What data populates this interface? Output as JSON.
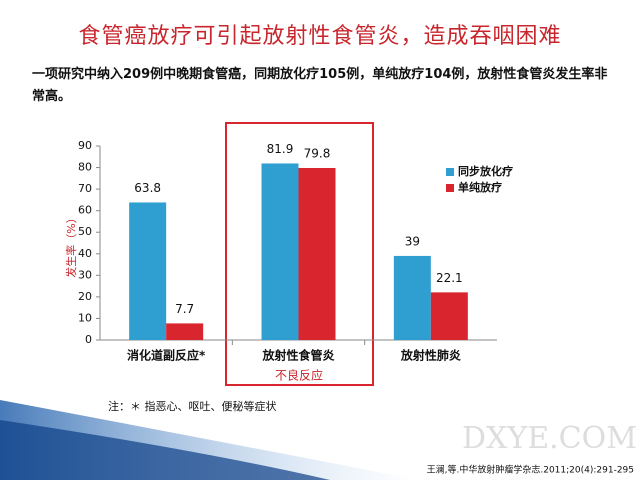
{
  "chart_data": {
    "type": "bar",
    "title": "食管癌放疗可引起放射性食管炎，造成吞咽困难",
    "subtitle": "一项研究中纳入209例中晚期食管癌，同期放化疗105例，单纯放疗104例，放射性食管炎发生率非常高。",
    "categories": [
      "消化道副反应*",
      "放射性食管炎",
      "放射性肺炎"
    ],
    "series": [
      {
        "name": "同步放化疗",
        "color": "#2e9fd0",
        "values": [
          63.8,
          81.9,
          39
        ]
      },
      {
        "name": "单纯放疗",
        "color": "#d9262e",
        "values": [
          7.7,
          79.8,
          22.1
        ]
      }
    ],
    "ylim": [
      0,
      90
    ],
    "yticks": [
      0,
      10,
      20,
      30,
      40,
      50,
      60,
      70,
      80,
      90
    ],
    "y_label": "发生率（%）",
    "x_label": "不良反应",
    "legend": "right",
    "footnote": "注：＊ 指恶心、呕吐、便秘等症状",
    "watermark": "DXYE.COM",
    "citation": "王澜,等.中华放射肿瘤学杂志.2011;20(4):291-295"
  }
}
